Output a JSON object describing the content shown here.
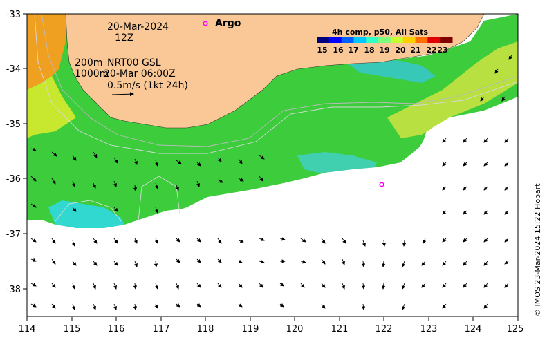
{
  "map": {
    "lon_ticks": [
      "114",
      "115",
      "116",
      "117",
      "118",
      "119",
      "120",
      "121",
      "122",
      "123",
      "124",
      "125"
    ],
    "lat_ticks": [
      "-33",
      "-34",
      "-35",
      "-36",
      "-37",
      "-38"
    ],
    "date": "20-Mar-2024",
    "hour": "12Z",
    "contour_200": "200m",
    "contour_1000": "1000m",
    "product": "NRT00 GSL",
    "current_time": "20-Mar 06:00Z",
    "vector_scale": "0.5m/s (1kt 24h)",
    "argo_label": "Argo",
    "credit": "© IMOS 23-Mar-2024 15:22 Hobart"
  },
  "colorbar": {
    "title": "4h comp, p50, All Sats",
    "ticks": [
      "15",
      "16",
      "17",
      "18",
      "19",
      "20",
      "21",
      "22",
      "23"
    ],
    "colors": [
      "#00007f",
      "#0000ff",
      "#0060ff",
      "#00c8ff",
      "#30ffc8",
      "#7dff7d",
      "#c8ff30",
      "#ffd000",
      "#ff7000",
      "#e00000",
      "#800000"
    ]
  },
  "colors": {
    "land": "#f9c896",
    "warm_sst": "#f0a020",
    "mid_sst": "#39cc39",
    "cool_sst": "#30d8d0",
    "argo": "#ff00ff"
  }
}
